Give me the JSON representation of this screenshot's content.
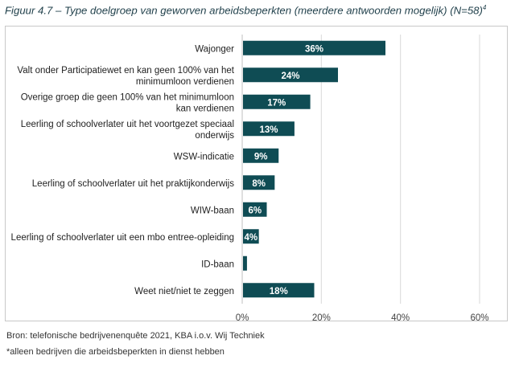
{
  "title_main": "Figuur 4.7 – Type doelgroep van geworven arbeidsbeperkten (meerdere antwoorden mogelijk) (N=58)",
  "title_sup": "4",
  "source": "Bron: telefonische bedrijvenenquête 2021, KBA i.o.v. Wij Techniek",
  "note": "*alleen bedrijven die arbeidsbeperkten in dienst hebben",
  "bar_color": "#0f4c54",
  "chart_data": {
    "type": "bar",
    "orientation": "horizontal",
    "categories": [
      [
        "Wajonger"
      ],
      [
        "Valt onder Participatiewet en kan geen 100% van het",
        "minimumloon verdienen"
      ],
      [
        "Overige groep die geen 100% van het minimumloon",
        "kan verdienen"
      ],
      [
        "Leerling of schoolverlater uit het voortgezet speciaal",
        "onderwijs"
      ],
      [
        "WSW-indicatie"
      ],
      [
        "Leerling of schoolverlater uit het praktijkonderwijs"
      ],
      [
        "WIW-baan"
      ],
      [
        "Leerling of schoolverlater uit een mbo entree-opleiding"
      ],
      [
        "ID-baan"
      ],
      [
        "Weet niet/niet te zeggen"
      ]
    ],
    "values": [
      36,
      24,
      17,
      13,
      9,
      8,
      6,
      4,
      1,
      18
    ],
    "data_labels": [
      "36%",
      "24%",
      "17%",
      "13%",
      "9%",
      "8%",
      "6%",
      "4%",
      "",
      "18%"
    ],
    "xlim": [
      0,
      60
    ],
    "xticks": [
      0,
      20,
      40,
      60
    ],
    "xtick_labels": [
      "0%",
      "20%",
      "40%",
      "60%"
    ],
    "grid": "vertical",
    "xlabel": "",
    "ylabel": ""
  }
}
